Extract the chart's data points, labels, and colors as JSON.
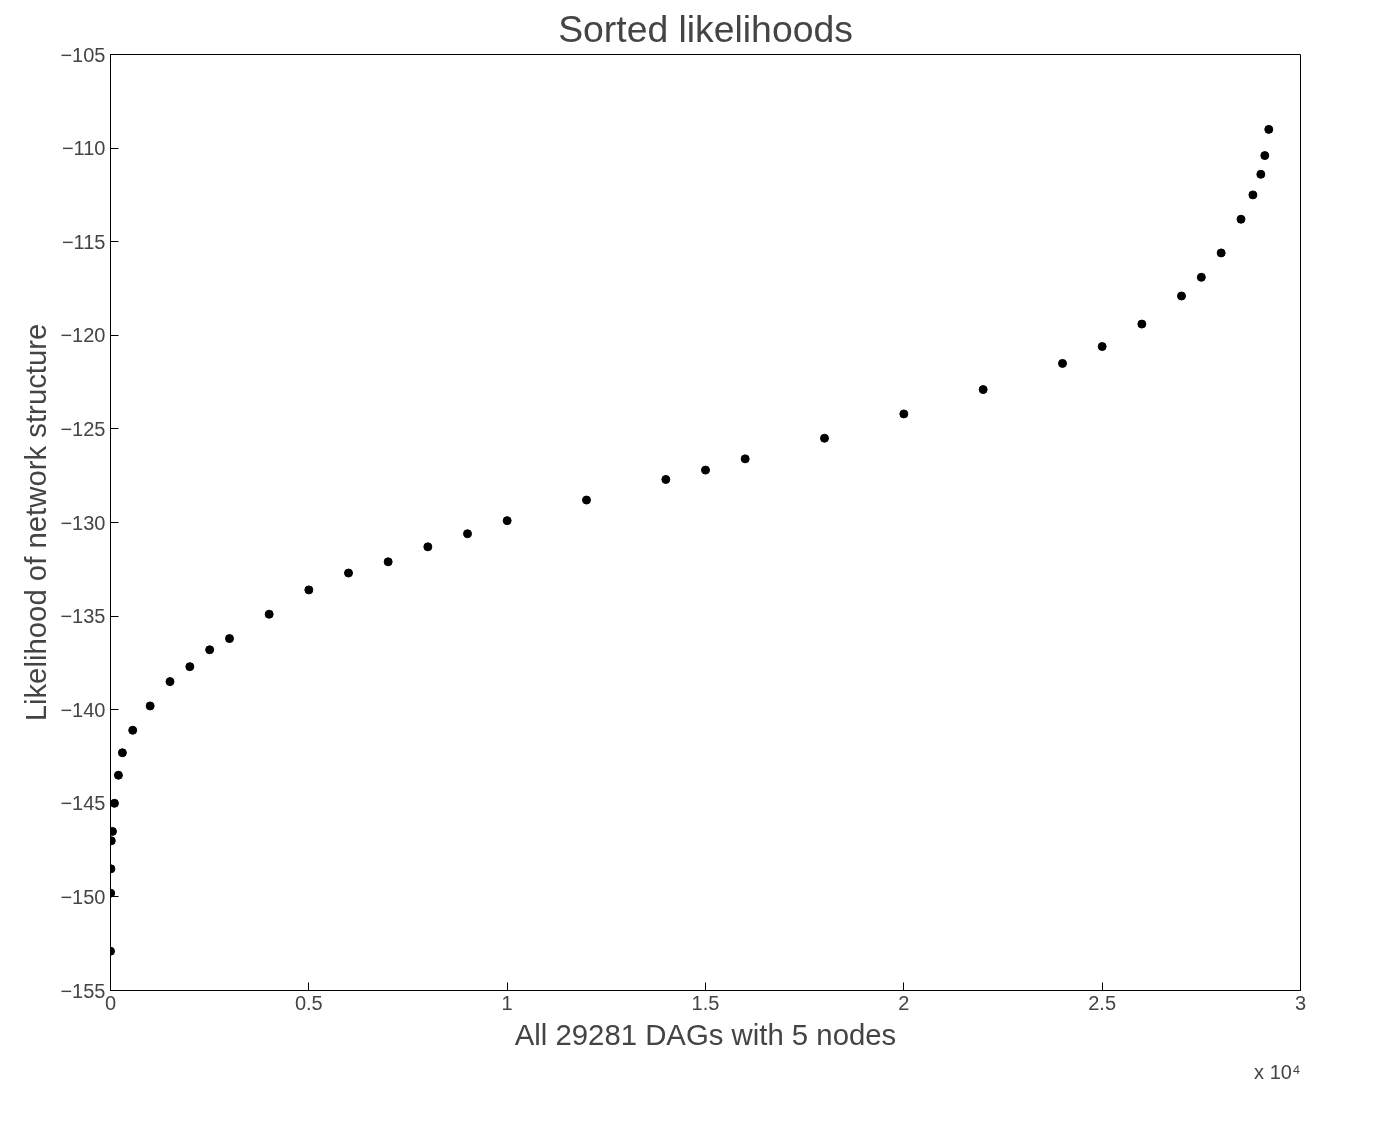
{
  "chart_data": {
    "type": "scatter",
    "title": "Sorted likelihoods",
    "xlabel": "All 29281 DAGs with 5 nodes",
    "ylabel": "Likelihood of network structure",
    "annotations": [
      "x 10⁴"
    ],
    "x": [
      0,
      0.0005,
      0.001,
      0.002,
      0.005,
      0.01,
      0.02,
      0.03,
      0.056,
      0.1,
      0.15,
      0.2,
      0.25,
      0.3,
      0.4,
      0.5,
      0.6,
      0.7,
      0.8,
      0.9,
      1.0,
      1.2,
      1.4,
      1.5,
      1.6,
      1.8,
      2.0,
      2.2,
      2.4,
      2.5,
      2.6,
      2.7,
      2.75,
      2.8,
      2.85,
      2.88,
      2.9,
      2.91,
      2.92
    ],
    "series": [
      {
        "color": "#000000",
        "values": [
          -152.9,
          -149.8,
          -148.5,
          -147,
          -146.5,
          -145,
          -143.5,
          -142.3,
          -141.1,
          -139.8,
          -138.5,
          -137.7,
          -136.8,
          -136.2,
          -134.9,
          -133.6,
          -132.7,
          -132.1,
          -131.3,
          -130.6,
          -129.9,
          -128.8,
          -127.7,
          -127.2,
          -126.6,
          -125.5,
          -124.2,
          -122.9,
          -121.5,
          -120.6,
          -119.4,
          -117.9,
          -116.9,
          -115.6,
          -113.8,
          -112.5,
          -111.4,
          -110.4,
          -109.0
        ]
      }
    ],
    "xlim": [
      0,
      3
    ],
    "ylim": [
      -155,
      -105
    ],
    "xticks": [
      0,
      0.5,
      1,
      1.5,
      2,
      2.5,
      3
    ],
    "yticks": [
      -155,
      -150,
      -145,
      -140,
      -135,
      -130,
      -125,
      -120,
      -115,
      -110,
      -105
    ],
    "grid": false,
    "marker": "circle"
  }
}
